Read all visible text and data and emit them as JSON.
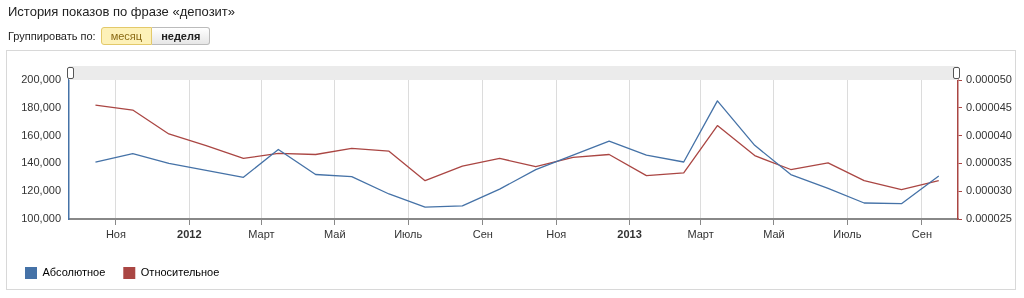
{
  "chart_data": {
    "type": "line",
    "title": "История показов по фразе «депозит»",
    "annotations": [
      "Группировать по:",
      "месяц",
      "неделя"
    ],
    "x": [
      "2011-10-15",
      "2011-11-15",
      "2011-12-15",
      "2012-01-15",
      "2012-02-15",
      "2012-03-15",
      "2012-04-15",
      "2012-05-15",
      "2012-06-15",
      "2012-07-15",
      "2012-08-15",
      "2012-09-15",
      "2012-10-15",
      "2012-11-15",
      "2012-12-15",
      "2013-01-15",
      "2013-02-15",
      "2013-03-15",
      "2013-04-15",
      "2013-05-15",
      "2013-06-15",
      "2013-07-15",
      "2013-08-15",
      "2013-09-15"
    ],
    "series": [
      {
        "name": "Абсолютное",
        "color": "#4572a7",
        "values": [
          141000,
          147000,
          140000,
          135000,
          130000,
          150000,
          132000,
          130500,
          118000,
          108500,
          109500,
          121500,
          135500,
          146000,
          156000,
          146000,
          141000,
          185000,
          153000,
          132000,
          122000,
          111500,
          111000,
          131000
        ]
      },
      {
        "name": "Относительное",
        "color": "#aa4643",
        "axis": "y2",
        "values": [
          4.55e-05,
          4.46e-05,
          4.03e-05,
          3.82e-05,
          3.59e-05,
          3.68e-05,
          3.66e-05,
          3.77e-05,
          3.72e-05,
          3.19e-05,
          3.45e-05,
          3.59e-05,
          3.44e-05,
          3.61e-05,
          3.66e-05,
          3.28e-05,
          3.33e-05,
          4.18e-05,
          3.64e-05,
          3.39e-05,
          3.51e-05,
          3.19e-05,
          3.03e-05,
          3.19e-05
        ]
      }
    ],
    "xlim": [
      "2011-09-23",
      "2013-10-01"
    ],
    "xticks": [
      {
        "value": "2011-11-01",
        "label": "Ноя"
      },
      {
        "value": "2012-01-01",
        "label": "2012"
      },
      {
        "value": "2012-03-01",
        "label": "Март"
      },
      {
        "value": "2012-05-01",
        "label": "Май"
      },
      {
        "value": "2012-07-01",
        "label": "Июль"
      },
      {
        "value": "2012-09-01",
        "label": "Сен"
      },
      {
        "value": "2012-11-01",
        "label": "Ноя"
      },
      {
        "value": "2013-01-01",
        "label": "2013"
      },
      {
        "value": "2013-03-01",
        "label": "Март"
      },
      {
        "value": "2013-05-01",
        "label": "Май"
      },
      {
        "value": "2013-07-01",
        "label": "Июль"
      },
      {
        "value": "2013-09-01",
        "label": "Сен"
      }
    ],
    "ylim": [
      100000,
      200000
    ],
    "yticks": [
      {
        "value": 100000,
        "label": "100,000"
      },
      {
        "value": 120000,
        "label": "120,000"
      },
      {
        "value": 140000,
        "label": "140,000"
      },
      {
        "value": 160000,
        "label": "160,000"
      },
      {
        "value": 180000,
        "label": "180,000"
      },
      {
        "value": 200000,
        "label": "200,000"
      }
    ],
    "y2lim": [
      2.5e-05,
      5e-05
    ],
    "y2ticks": [
      {
        "value": 2.5e-05,
        "label": "0.000025"
      },
      {
        "value": 3e-05,
        "label": "0.000030"
      },
      {
        "value": 3.5e-05,
        "label": "0.000035"
      },
      {
        "value": 4e-05,
        "label": "0.000040"
      },
      {
        "value": 4.5e-05,
        "label": "0.000045"
      },
      {
        "value": 5e-05,
        "label": "0.000050"
      }
    ],
    "grid": "x",
    "legend": "bottom left",
    "marker": "none",
    "line_style": "solid"
  }
}
